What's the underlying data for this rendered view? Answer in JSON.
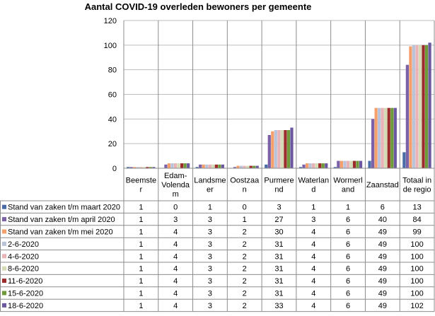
{
  "chart_data": {
    "type": "bar",
    "title": "Aantal COVID-19  overleden bewoners per gemeente",
    "xlabel": "",
    "ylabel": "",
    "ylim": [
      0,
      120
    ],
    "yticks": [
      0,
      20,
      40,
      60,
      80,
      100,
      120
    ],
    "categories": [
      [
        "Beemste",
        "r"
      ],
      [
        "Edam-",
        "Volenda",
        "m"
      ],
      [
        "Landsme",
        "er"
      ],
      [
        "Oostzaa",
        "n"
      ],
      [
        "Purmere",
        "nd"
      ],
      [
        "Waterlan",
        "d"
      ],
      [
        "Wormerl",
        "and"
      ],
      [
        "Zaanstad"
      ],
      [
        "Totaal in",
        "de regio"
      ]
    ],
    "series": [
      {
        "name": "Stand van zaken t/m maart 2020",
        "color": "#4a6da8",
        "values": [
          1,
          0,
          1,
          0,
          3,
          1,
          1,
          6,
          13
        ]
      },
      {
        "name": "Stand van zaken t/m april 2020",
        "color": "#7b62a8",
        "values": [
          1,
          3,
          3,
          1,
          27,
          3,
          6,
          40,
          84
        ]
      },
      {
        "name": "Stand van zaken t/m mei 2020",
        "color": "#f5a06c",
        "values": [
          1,
          4,
          3,
          2,
          30,
          4,
          6,
          49,
          99
        ]
      },
      {
        "name": "2-6-2020",
        "color": "#b9c3da",
        "values": [
          1,
          4,
          3,
          2,
          31,
          4,
          6,
          49,
          100
        ]
      },
      {
        "name": "4-6-2020",
        "color": "#e8b2b6",
        "values": [
          1,
          4,
          3,
          2,
          31,
          4,
          6,
          49,
          100
        ]
      },
      {
        "name": "8-6-2020",
        "color": "#d3dcb4",
        "values": [
          1,
          4,
          3,
          2,
          31,
          4,
          6,
          49,
          100
        ]
      },
      {
        "name": "11-6-2020",
        "color": "#9c2b2b",
        "values": [
          1,
          4,
          3,
          2,
          31,
          4,
          6,
          49,
          100
        ]
      },
      {
        "name": "15-6-2020",
        "color": "#6f9a3a",
        "values": [
          1,
          4,
          3,
          2,
          31,
          4,
          6,
          49,
          100
        ]
      },
      {
        "name": "18-6-2020",
        "color": "#6c58a0",
        "values": [
          1,
          4,
          3,
          2,
          33,
          4,
          6,
          49,
          102
        ]
      }
    ]
  }
}
